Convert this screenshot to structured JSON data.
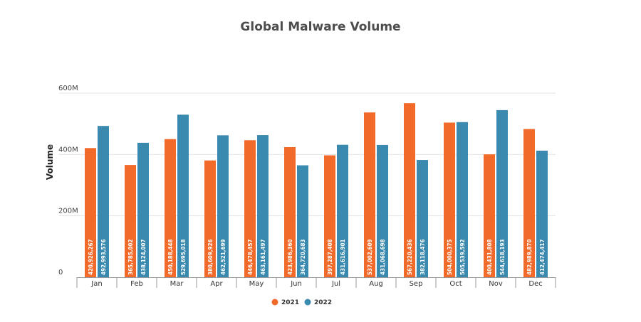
{
  "chart_data": {
    "type": "bar",
    "title": "Global Malware Volume",
    "xlabel": "",
    "ylabel": "Volume",
    "categories": [
      "Jan",
      "Feb",
      "Mar",
      "Apr",
      "May",
      "Jun",
      "Jul",
      "Aug",
      "Sep",
      "Oct",
      "Nov",
      "Dec"
    ],
    "ylim": [
      0,
      600000000
    ],
    "yticks": [
      0,
      200000000,
      400000000,
      600000000
    ],
    "ytick_labels": [
      "0",
      "200M",
      "400M",
      "600M"
    ],
    "grid": true,
    "legend_position": "bottom",
    "series": [
      {
        "name": "2021",
        "color": "#f26a2a",
        "values": [
          420926267,
          365785002,
          450188448,
          380609926,
          446478457,
          423986360,
          397287408,
          537002609,
          567220436,
          504000375,
          400431808,
          482989870
        ],
        "labels": [
          "420,926,267",
          "365,785,002",
          "450,188,448",
          "380,609,926",
          "446,478,457",
          "423,986,360",
          "397,287,408",
          "537,002,609",
          "567,220,436",
          "504,000,375",
          "400,431,808",
          "482,989,870"
        ]
      },
      {
        "name": "2022",
        "color": "#3a8ab0",
        "values": [
          492993576,
          438124007,
          529695018,
          462521699,
          463161497,
          364720683,
          431616901,
          431068698,
          382118476,
          505539592,
          544618193,
          412474417
        ],
        "labels": [
          "492,993,576",
          "438,124,007",
          "529,695,018",
          "462,521,699",
          "463,161,497",
          "364,720,683",
          "431,616,901",
          "431,068,698",
          "382,118,476",
          "505,539,592",
          "544,618,193",
          "412,474,417"
        ]
      }
    ]
  }
}
